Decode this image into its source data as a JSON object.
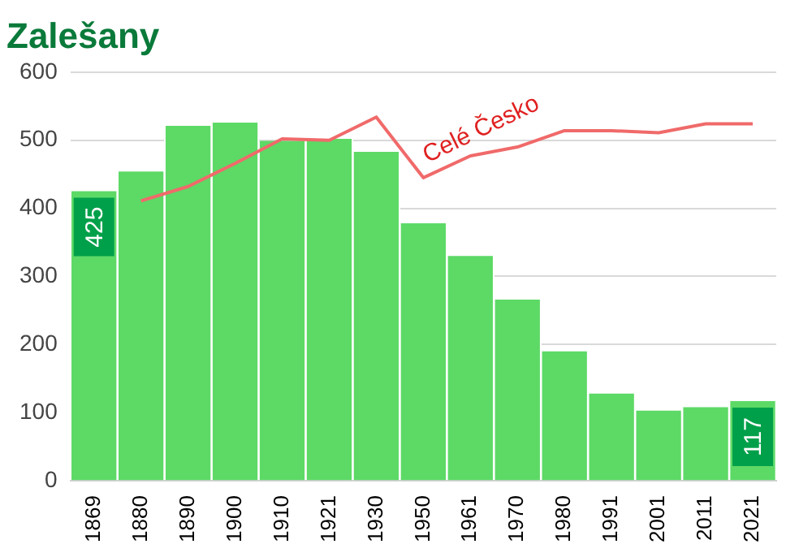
{
  "chart_data": {
    "type": "bar",
    "title": "Zalešany",
    "categories": [
      "1869",
      "1880",
      "1890",
      "1900",
      "1910",
      "1921",
      "1930",
      "1950",
      "1961",
      "1970",
      "1980",
      "1991",
      "2001",
      "2011",
      "2021"
    ],
    "series": [
      {
        "color": "#5dd966",
        "values": [
          425,
          454,
          521,
          526,
          499,
          502,
          483,
          378,
          330,
          266,
          190,
          128,
          103,
          108,
          117
        ],
        "value_labels": [
          "425",
          null,
          null,
          null,
          null,
          null,
          null,
          null,
          null,
          null,
          null,
          null,
          null,
          null,
          "117"
        ]
      },
      {
        "type": "line",
        "name": "Celé Česko",
        "color": "#f06a6a",
        "values": [
          null,
          411,
          432,
          466,
          502,
          500,
          534,
          445,
          477,
          490,
          514,
          514,
          511,
          524,
          524
        ]
      }
    ],
    "ylim": [
      0,
      600
    ],
    "yticks": [
      0,
      100,
      200,
      300,
      400,
      500,
      600
    ],
    "grid": "y",
    "legend": false,
    "marker": "none",
    "line_style": "solid"
  }
}
